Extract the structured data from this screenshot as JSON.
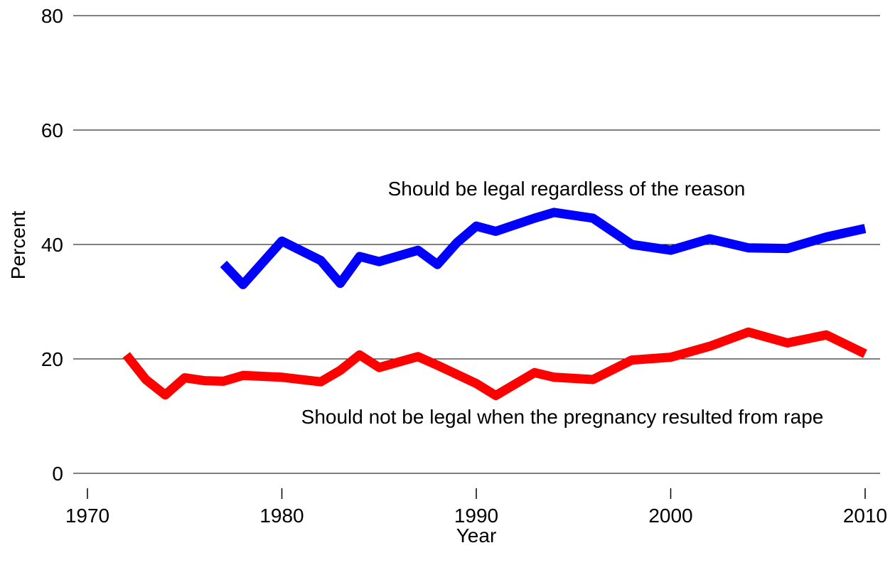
{
  "chart_data": {
    "type": "line",
    "xlabel": "Year",
    "ylabel": "Percent",
    "xlim": [
      1970,
      2010
    ],
    "ylim": [
      0,
      80
    ],
    "xticks": [
      "1970",
      "1980",
      "1990",
      "2000",
      "2010"
    ],
    "yticks": [
      "0",
      "20",
      "40",
      "60",
      "80"
    ],
    "grid": "horizontal",
    "legend": "none",
    "annotations": [
      "Should be legal regardless of the reason",
      "Should not be legal when the pregnancy resulted from rape"
    ],
    "series": [
      {
        "color": "#0000ff",
        "points": [
          [
            1977,
            36.6
          ],
          [
            1978,
            33.0
          ],
          [
            1980,
            40.6
          ],
          [
            1982,
            37.2
          ],
          [
            1983,
            33.2
          ],
          [
            1984,
            37.9
          ],
          [
            1985,
            37.0
          ],
          [
            1987,
            39.0
          ],
          [
            1988,
            36.5
          ],
          [
            1989,
            40.3
          ],
          [
            1990,
            43.2
          ],
          [
            1991,
            42.3
          ],
          [
            1993,
            44.6
          ],
          [
            1994,
            45.6
          ],
          [
            1996,
            44.6
          ],
          [
            1998,
            40.0
          ],
          [
            2000,
            39.0
          ],
          [
            2002,
            41.0
          ],
          [
            2004,
            39.4
          ],
          [
            2006,
            39.3
          ],
          [
            2008,
            41.3
          ],
          [
            2010,
            42.8
          ]
        ]
      },
      {
        "color": "#ff0000",
        "points": [
          [
            1972,
            20.7
          ],
          [
            1973,
            16.4
          ],
          [
            1974,
            13.7
          ],
          [
            1975,
            16.7
          ],
          [
            1976,
            16.2
          ],
          [
            1977,
            16.1
          ],
          [
            1978,
            17.1
          ],
          [
            1980,
            16.8
          ],
          [
            1982,
            16.0
          ],
          [
            1983,
            18.0
          ],
          [
            1984,
            20.7
          ],
          [
            1985,
            18.5
          ],
          [
            1987,
            20.4
          ],
          [
            1988,
            18.9
          ],
          [
            1990,
            15.7
          ],
          [
            1991,
            13.6
          ],
          [
            1993,
            17.6
          ],
          [
            1994,
            16.8
          ],
          [
            1996,
            16.4
          ],
          [
            1998,
            19.8
          ],
          [
            2000,
            20.3
          ],
          [
            2002,
            22.2
          ],
          [
            2004,
            24.7
          ],
          [
            2006,
            22.8
          ],
          [
            2008,
            24.2
          ],
          [
            2010,
            20.9
          ]
        ]
      }
    ]
  }
}
